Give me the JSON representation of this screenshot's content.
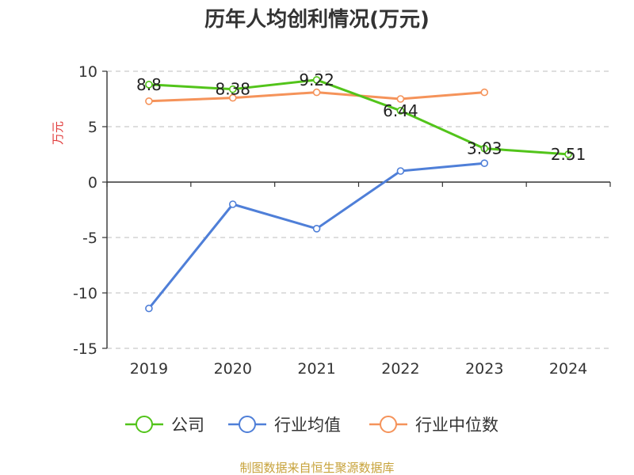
{
  "chart_data": {
    "type": "line",
    "title": "历年人均创利情况(万元)",
    "ylabel": "万元",
    "categories": [
      "2019",
      "2020",
      "2021",
      "2022",
      "2023",
      "2024"
    ],
    "ylim": [
      -15,
      10
    ],
    "yticks": [
      10,
      5,
      0,
      -5,
      -10,
      -15
    ],
    "grid": true,
    "legend_position": "bottom",
    "series": [
      {
        "name": "公司",
        "color": "#52c41a",
        "values": [
          8.8,
          8.38,
          9.22,
          6.44,
          3.03,
          2.51
        ],
        "labels": [
          "8.8",
          "8.38",
          "9.22",
          "6.44",
          "3.03",
          "2.51"
        ]
      },
      {
        "name": "行业均值",
        "color": "#4f7fd8",
        "values": [
          -11.4,
          -2.0,
          -4.2,
          1.0,
          1.7,
          null
        ]
      },
      {
        "name": "行业中位数",
        "color": "#f5935a",
        "values": [
          7.3,
          7.6,
          8.1,
          7.5,
          8.1,
          null
        ]
      }
    ]
  },
  "source": "制图数据来自恒生聚源数据库"
}
